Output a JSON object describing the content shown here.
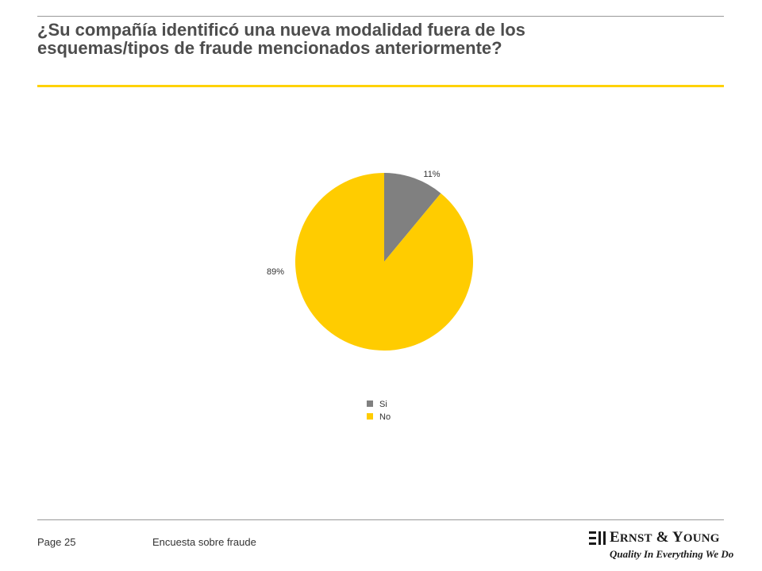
{
  "title_lines": [
    "¿Su compañía identificó una nueva modalidad fuera de los",
    "esquemas/tipos de fraude mencionados anteriormente?"
  ],
  "footer": {
    "page": "Page 25",
    "survey": "Encuesta sobre fraude"
  },
  "logo": {
    "name": "Ernst & Young",
    "tagline": "Quality In Everything We Do"
  },
  "chart_data": {
    "type": "pie",
    "title": "",
    "slices": [
      {
        "name": "Si",
        "value": 11,
        "label": "11%",
        "color": "#808080"
      },
      {
        "name": "No",
        "value": 89,
        "label": "89%",
        "color": "#ffcc00"
      }
    ],
    "start_angle": "top, clockwise",
    "legend": {
      "placement": "bottom",
      "entries": [
        "Si",
        "No"
      ]
    }
  }
}
